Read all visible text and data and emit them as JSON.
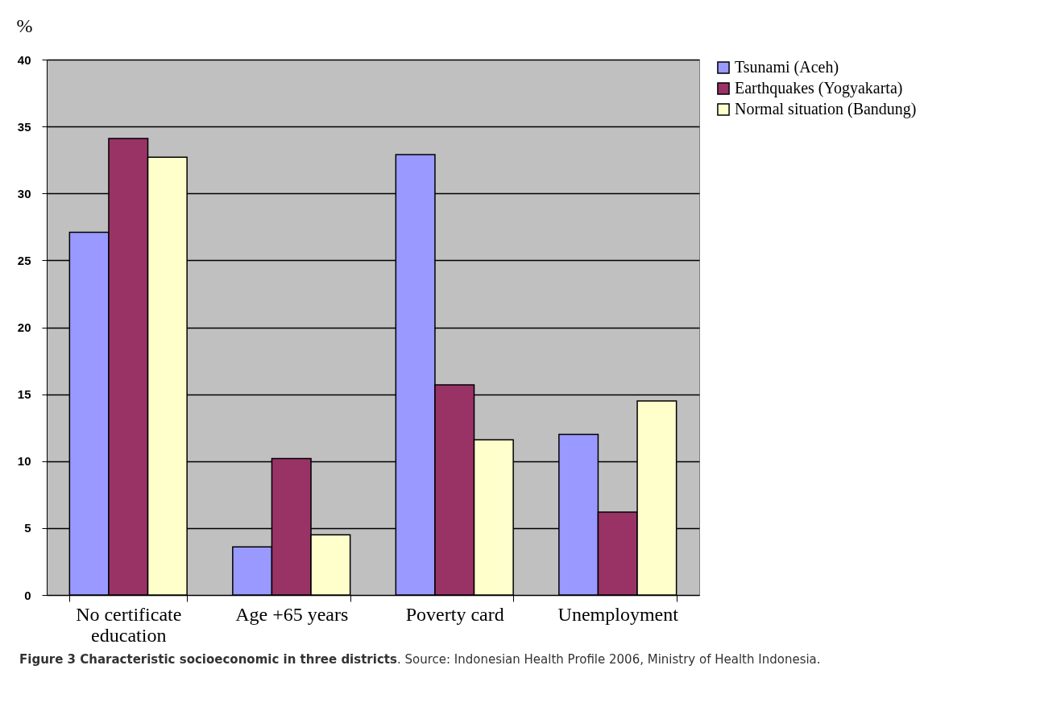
{
  "chart_data": {
    "type": "bar",
    "title": "Figure 3 Characteristic socioeconomic in three districts",
    "annotations": [
      ". Source: Indonesian Health Profile 2006, Ministry of Health Indonesia."
    ],
    "ylabel": "%",
    "categories": [
      "No certificate education",
      "Age +65 years",
      "Poverty card",
      "Unemployment"
    ],
    "series": [
      {
        "name": "Tsunami (Aceh)",
        "color": "#9999ff",
        "values": [
          27.1,
          3.6,
          32.9,
          12.0
        ]
      },
      {
        "name": "Earthquakes (Yogyakarta)",
        "color": "#993366",
        "values": [
          34.1,
          10.2,
          15.7,
          6.2
        ]
      },
      {
        "name": "Normal situation (Bandung)",
        "color": "#ffffcc",
        "values": [
          32.7,
          4.5,
          11.6,
          14.5
        ]
      }
    ],
    "ylim": [
      0,
      40
    ],
    "yticks": [
      0,
      5,
      10,
      15,
      20,
      25,
      30,
      35,
      40
    ],
    "grid": "y",
    "legend": "right"
  }
}
